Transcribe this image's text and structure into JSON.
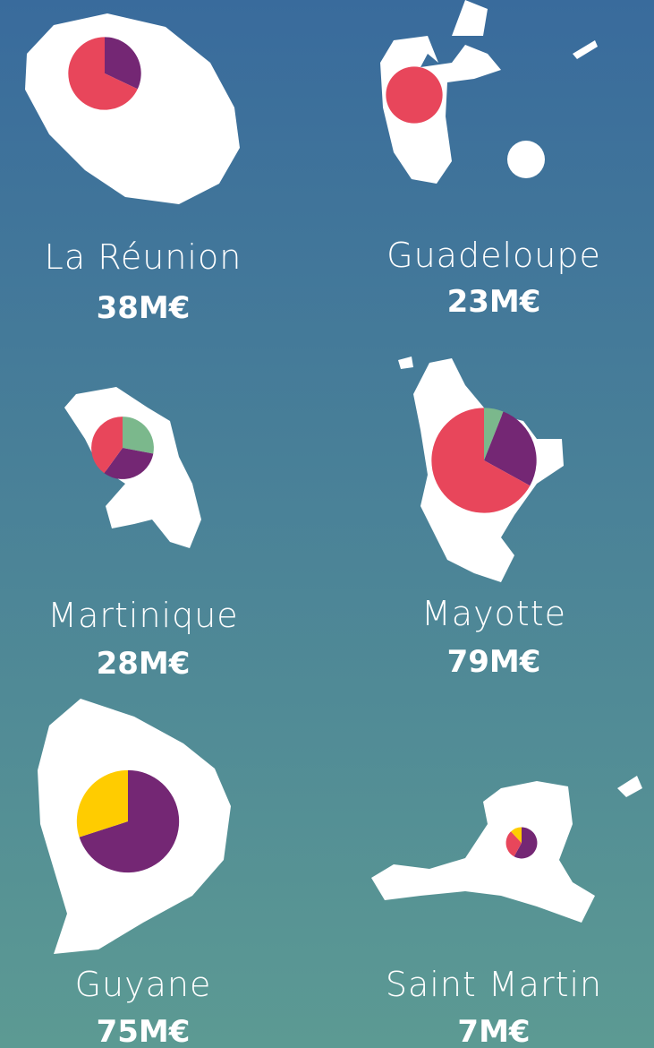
{
  "regions": [
    {
      "name": "La Réunion",
      "amount": {
        "value": 38,
        "label": "38M€"
      },
      "slices": [
        {
          "color": "#742774",
          "value": 32
        },
        {
          "color": "#e8465b",
          "value": 68
        }
      ]
    },
    {
      "name": "Guadeloupe",
      "amount": {
        "value": 23,
        "label": "23M€"
      },
      "slices": [
        {
          "color": "#e8465b",
          "value": 100
        }
      ]
    },
    {
      "name": "Martinique",
      "amount": {
        "value": 28,
        "label": "28M€"
      },
      "slices": [
        {
          "color": "#7bb88c",
          "value": 28
        },
        {
          "color": "#742774",
          "value": 32
        },
        {
          "color": "#e8465b",
          "value": 40
        }
      ]
    },
    {
      "name": "Mayotte",
      "amount": {
        "value": 79,
        "label": "79M€"
      },
      "slices": [
        {
          "color": "#7bb88c",
          "value": 6
        },
        {
          "color": "#742774",
          "value": 27
        },
        {
          "color": "#e8465b",
          "value": 67
        }
      ]
    },
    {
      "name": "Guyane",
      "amount": {
        "value": 75,
        "label": "75M€"
      },
      "slices": [
        {
          "color": "#742774",
          "value": 70
        },
        {
          "color": "#ffcc00",
          "value": 30
        }
      ]
    },
    {
      "name": "Saint Martin",
      "amount": {
        "value": 7,
        "label": "7M€"
      },
      "slices": [
        {
          "color": "#742774",
          "value": 58
        },
        {
          "color": "#e8465b",
          "value": 30
        },
        {
          "color": "#ffcc00",
          "value": 12
        }
      ]
    }
  ]
}
